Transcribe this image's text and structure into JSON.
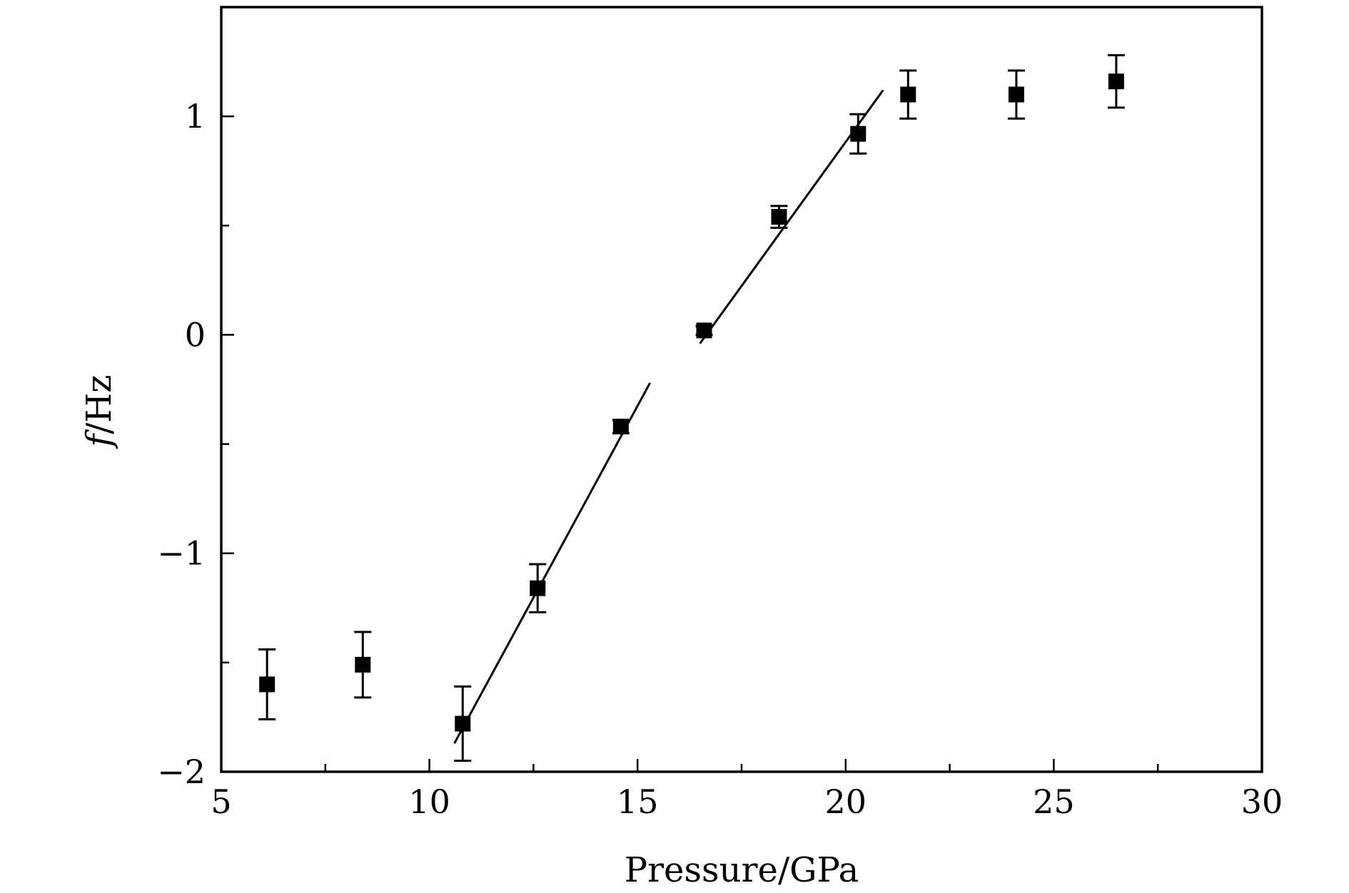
{
  "chart_data": {
    "type": "scatter",
    "xlabel": "Pressure/GPa",
    "ylabel_var": "f",
    "ylabel_unit": "/Hz",
    "xlim": [
      5,
      30
    ],
    "ylim": [
      -2,
      1.5
    ],
    "xticks": [
      5,
      10,
      15,
      20,
      25,
      30
    ],
    "xtick_labels": [
      "5",
      "10",
      "15",
      "20",
      "25",
      "30"
    ],
    "xminor": [
      7.5,
      12.5,
      17.5,
      22.5,
      27.5
    ],
    "yticks": [
      -2,
      -1,
      0,
      1
    ],
    "ytick_labels": [
      "−2",
      "−1",
      "0",
      "1"
    ],
    "yminor": [
      -1.5,
      -0.5,
      0.5
    ],
    "grid": false,
    "points": [
      {
        "x": 6.1,
        "y": -1.6,
        "err": 0.16
      },
      {
        "x": 8.4,
        "y": -1.51,
        "err": 0.15
      },
      {
        "x": 10.8,
        "y": -1.78,
        "err": 0.17
      },
      {
        "x": 12.6,
        "y": -1.16,
        "err": 0.11
      },
      {
        "x": 14.6,
        "y": -0.42,
        "err": 0.03
      },
      {
        "x": 16.6,
        "y": 0.02,
        "err": 0.02
      },
      {
        "x": 18.4,
        "y": 0.54,
        "err": 0.05
      },
      {
        "x": 20.3,
        "y": 0.92,
        "err": 0.09
      },
      {
        "x": 21.5,
        "y": 1.1,
        "err": 0.11
      },
      {
        "x": 24.1,
        "y": 1.1,
        "err": 0.11
      },
      {
        "x": 26.5,
        "y": 1.16,
        "err": 0.12
      }
    ],
    "fit_lines": [
      {
        "x1": 10.6,
        "y1": -1.87,
        "x2": 15.3,
        "y2": -0.22
      },
      {
        "x1": 16.5,
        "y1": -0.04,
        "x2": 20.9,
        "y2": 1.12
      }
    ]
  }
}
